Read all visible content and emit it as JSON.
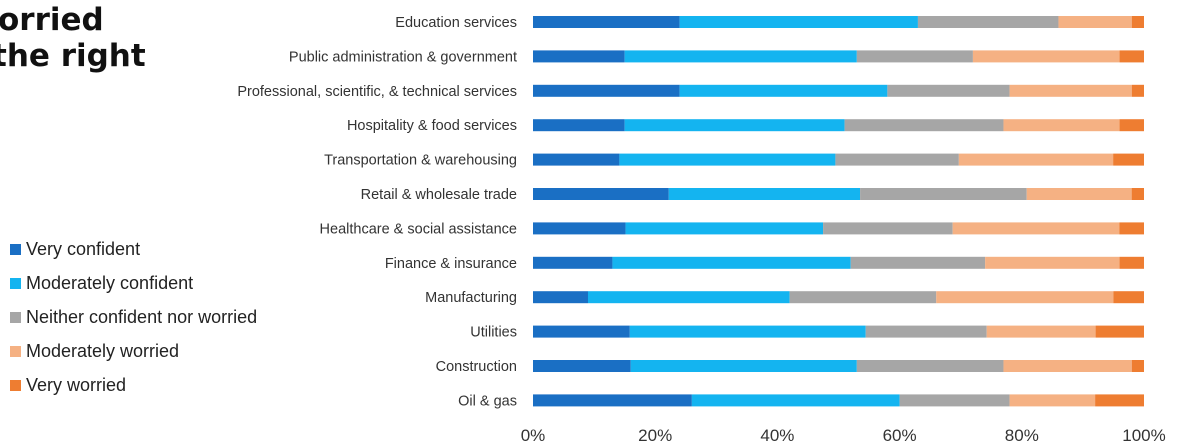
{
  "title": {
    "line1": "orried",
    "line2": "the right"
  },
  "chart_data": {
    "type": "bar",
    "orientation": "horizontal",
    "stacked": true,
    "percent": true,
    "categories": [
      "Education services",
      "Public administration & government",
      "Professional, scientific, & technical services",
      "Hospitality & food services",
      "Transportation & warehousing",
      "Retail & wholesale trade",
      "Healthcare & social assistance",
      "Finance & insurance",
      "Manufacturing",
      "Utilities",
      "Construction",
      "Oil & gas"
    ],
    "series": [
      {
        "name": "Very confident",
        "color": "#1a6fc4",
        "values": [
          24,
          15,
          24,
          15,
          14,
          22,
          15,
          13,
          9,
          16,
          16,
          26
        ]
      },
      {
        "name": "Moderately confident",
        "color": "#14b4f0",
        "values": [
          39,
          38,
          34,
          36,
          35,
          31,
          32,
          39,
          33,
          39,
          37,
          34
        ]
      },
      {
        "name": "Neither confident nor worried",
        "color": "#a6a6a6",
        "values": [
          23,
          19,
          20,
          26,
          20,
          27,
          21,
          22,
          24,
          20,
          24,
          18
        ]
      },
      {
        "name": "Moderately worried",
        "color": "#f5b183",
        "values": [
          12,
          24,
          20,
          19,
          25,
          17,
          27,
          22,
          29,
          18,
          21,
          14
        ]
      },
      {
        "name": "Very worried",
        "color": "#ee7d31",
        "values": [
          2,
          4,
          2,
          4,
          5,
          2,
          4,
          4,
          5,
          8,
          2,
          8
        ]
      }
    ],
    "xlim": [
      0,
      100
    ],
    "x_ticks": [
      "0%",
      "20%",
      "40%",
      "60%",
      "80%",
      "100%"
    ],
    "grid": false,
    "legend_position": "left"
  }
}
